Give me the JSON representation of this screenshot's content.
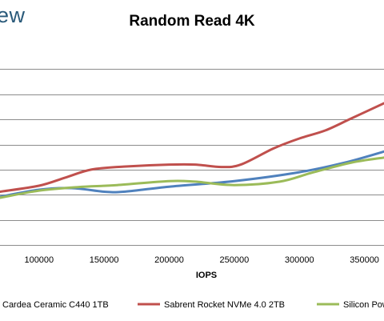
{
  "logo_text": "ew",
  "chart_data": {
    "type": "line",
    "title": "Random Read 4K",
    "xlabel": "IOPS",
    "ylabel": "",
    "xlim": [
      70000,
      365000
    ],
    "ylim": [
      0,
      100
    ],
    "x_ticks": [
      100000,
      150000,
      200000,
      250000,
      300000,
      350000
    ],
    "x_tick_labels": [
      "100000",
      "150000",
      "200000",
      "250000",
      "300000",
      "350000"
    ],
    "y_gridlines": [
      0,
      12.5,
      25,
      37.5,
      50,
      62.5,
      75,
      87.5
    ],
    "grid": true,
    "legend_position": "bottom",
    "series": [
      {
        "name": "Cardea Ceramic C440 1TB",
        "color": "#4f81bd",
        "points": [
          [
            70000,
            24
          ],
          [
            100000,
            27.5
          ],
          [
            125000,
            28.3
          ],
          [
            150000,
            26.5
          ],
          [
            165000,
            26.5
          ],
          [
            200000,
            29
          ],
          [
            250000,
            31.8
          ],
          [
            300000,
            36.2
          ],
          [
            335000,
            41
          ],
          [
            365000,
            46.5
          ]
        ]
      },
      {
        "name": "Sabrent Rocket NVMe 4.0 2TB",
        "color": "#c0504d",
        "points": [
          [
            70000,
            26.5
          ],
          [
            100000,
            29.5
          ],
          [
            120000,
            33.5
          ],
          [
            140000,
            37.5
          ],
          [
            165000,
            39
          ],
          [
            200000,
            40
          ],
          [
            220000,
            40
          ],
          [
            240000,
            38.8
          ],
          [
            255000,
            40
          ],
          [
            280000,
            48
          ],
          [
            300000,
            53
          ],
          [
            320000,
            57
          ],
          [
            340000,
            63
          ],
          [
            365000,
            70.5
          ]
        ]
      },
      {
        "name": "Silicon Power",
        "color": "#9bbb59",
        "points": [
          [
            70000,
            23.5
          ],
          [
            100000,
            27
          ],
          [
            130000,
            28.8
          ],
          [
            160000,
            29.8
          ],
          [
            200000,
            31.8
          ],
          [
            220000,
            31.5
          ],
          [
            250000,
            29.8
          ],
          [
            285000,
            31.5
          ],
          [
            310000,
            36
          ],
          [
            340000,
            41
          ],
          [
            365000,
            43.5
          ]
        ]
      }
    ]
  }
}
